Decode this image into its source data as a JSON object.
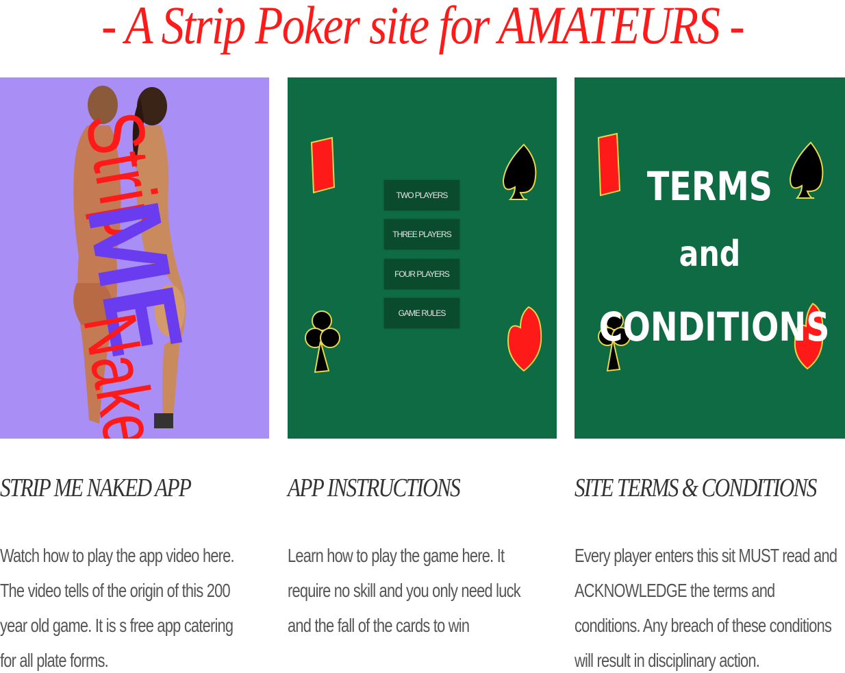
{
  "header": {
    "title": "- A Strip Poker site for AMATEURS -"
  },
  "tiles": {
    "strip": {
      "word1": "Strip",
      "word2": "ME",
      "word3": "Naked!"
    },
    "menu": {
      "items": [
        "TWO PLAYERS",
        "THREE PLAYERS",
        "FOUR PLAYERS",
        "GAME RULES"
      ]
    },
    "terms": {
      "line1": "TERMS",
      "line2": "and",
      "line3": "CONDITIONS"
    }
  },
  "columns": [
    {
      "title": "STRIP ME NAKED APP",
      "text": "Watch how to play the app video here. The video tells of the origin of this 200 year old game. It is s free app catering for all plate forms."
    },
    {
      "title": "APP INSTRUCTIONS",
      "text": "Learn how to play the game here. It require no skill and you only need luck and the fall of the cards to win"
    },
    {
      "title": "SITE TERMS & CONDITIONS",
      "text": "Every player enters this sit MUST read and ACKNOWLEDGE the terms and conditions. Any breach of these conditions will result in disciplinary action."
    }
  ],
  "colors": {
    "headline": "#ff1a1a",
    "tile_purple": "#a98ff5",
    "tile_green": "#0f6b43",
    "suit_red": "#ff1a1a",
    "suit_black": "#000000",
    "suit_outline": "#e8d84a"
  },
  "icons": [
    "diamond-icon",
    "spade-icon",
    "club-icon",
    "heart-icon"
  ]
}
